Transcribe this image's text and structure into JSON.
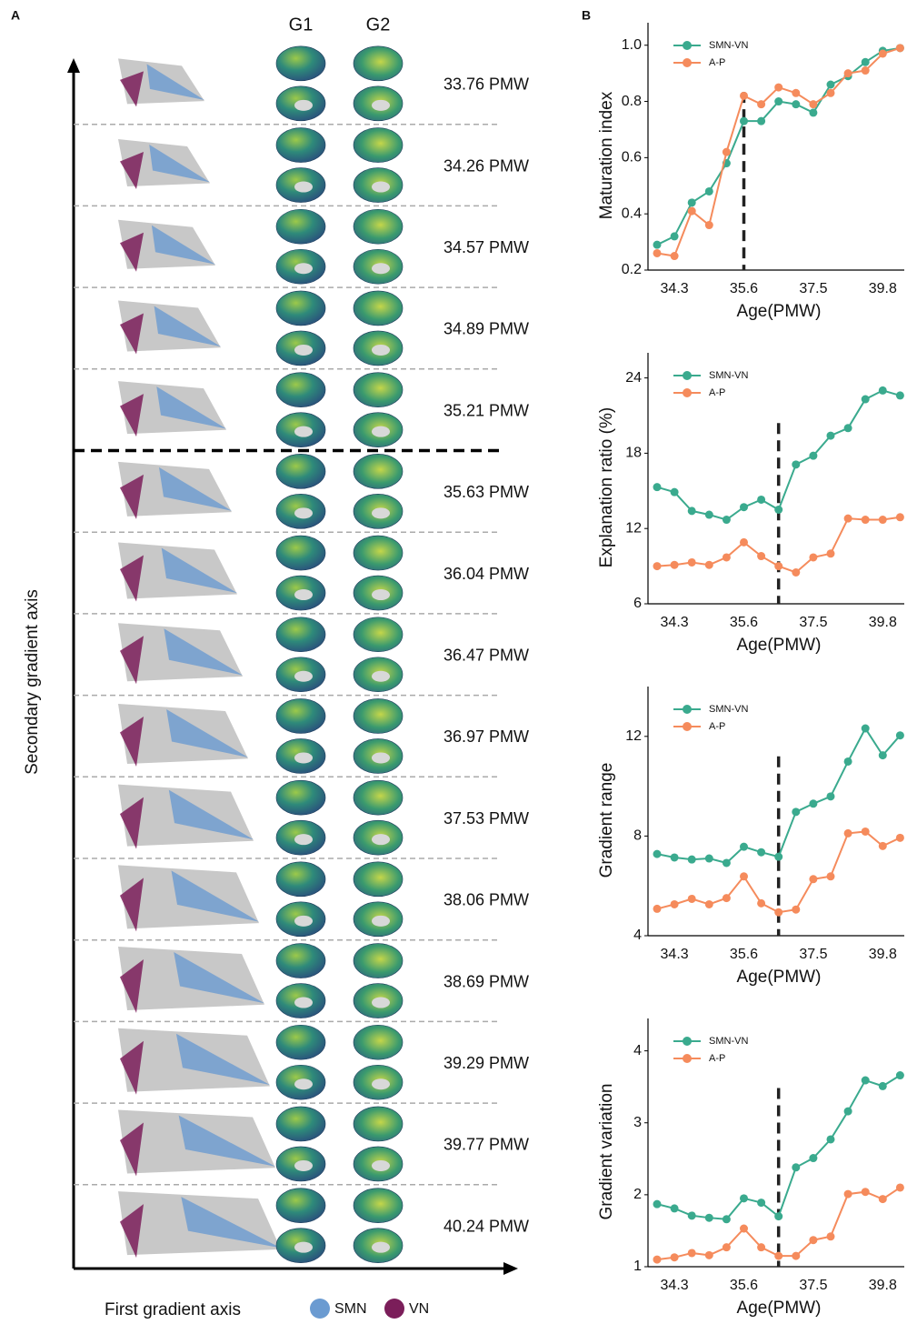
{
  "panel_labels": [
    "A",
    "B"
  ],
  "panel_a": {
    "column_headers": [
      "G1",
      "G2"
    ],
    "rows": [
      "33.76 PMW",
      "34.26 PMW",
      "34.57 PMW",
      "34.89 PMW",
      "35.21 PMW",
      "35.63 PMW",
      "36.04 PMW",
      "36.47 PMW",
      "36.97 PMW",
      "37.53 PMW",
      "38.06 PMW",
      "38.69 PMW",
      "39.29 PMW",
      "39.77 PMW",
      "40.24 PMW"
    ],
    "y_label": "Secondary gradient axis",
    "x_label": "First gradient axis",
    "legend": [
      {
        "name": "SMN",
        "color": "#6b9bd1"
      },
      {
        "name": "VN",
        "color": "#7b1e5a"
      }
    ]
  },
  "chart_data": [
    {
      "type": "line",
      "y_label": "Maturation index",
      "x_label": "Age(PMW)",
      "categories": [
        null,
        "34.3",
        null,
        null,
        null,
        "35.6",
        null,
        null,
        null,
        "37.5",
        null,
        null,
        null,
        "39.8",
        null
      ],
      "series": [
        {
          "name": "SMN-VN",
          "color": "#3aaa8e",
          "values": [
            0.29,
            0.32,
            0.44,
            0.48,
            0.58,
            0.73,
            0.73,
            0.8,
            0.79,
            0.76,
            0.86,
            0.89,
            0.94,
            0.98,
            0.99
          ]
        },
        {
          "name": "A-P",
          "color": "#f58b5c",
          "values": [
            0.26,
            0.25,
            0.41,
            0.36,
            0.62,
            0.82,
            0.79,
            0.85,
            0.83,
            0.79,
            0.83,
            0.9,
            0.91,
            0.97,
            0.99
          ]
        }
      ],
      "ylim": [
        0.2,
        1.08
      ],
      "yticks": [
        {
          "value": 0.2,
          "label": "0.2"
        },
        {
          "value": 0.4,
          "label": "0.4"
        },
        {
          "value": 0.6,
          "label": "0.6"
        },
        {
          "value": 0.8,
          "label": "0.8"
        },
        {
          "value": 1.0,
          "label": "1.0"
        }
      ],
      "vline_category": 5
    },
    {
      "type": "line",
      "y_label": "Explanation ratio (%)",
      "x_label": "Age(PMW)",
      "categories": [
        null,
        "34.3",
        null,
        null,
        null,
        "35.6",
        null,
        null,
        null,
        "37.5",
        null,
        null,
        null,
        "39.8",
        null
      ],
      "series": [
        {
          "name": "SMN-VN",
          "color": "#3aaa8e",
          "values": [
            15.3,
            14.9,
            13.4,
            13.1,
            12.7,
            13.7,
            14.3,
            13.5,
            17.1,
            17.8,
            19.4,
            20.0,
            22.3,
            23.0,
            22.6
          ]
        },
        {
          "name": "A-P",
          "color": "#f58b5c",
          "values": [
            9.0,
            9.1,
            9.3,
            9.1,
            9.7,
            10.9,
            9.8,
            9.0,
            8.5,
            9.7,
            10.0,
            12.8,
            12.7,
            12.7,
            12.9
          ]
        }
      ],
      "ylim": [
        6,
        26
      ],
      "yticks": [
        6,
        12,
        18,
        24
      ],
      "vline_category": 7
    },
    {
      "type": "line",
      "y_label": "Gradient range",
      "x_label": "Age(PMW)",
      "categories": [
        null,
        "34.3",
        null,
        null,
        null,
        "35.6",
        null,
        null,
        null,
        "37.5",
        null,
        null,
        null,
        "39.8",
        null
      ],
      "series": [
        {
          "name": "SMN-VN",
          "color": "#3aaa8e",
          "values": [
            7.28,
            7.14,
            7.06,
            7.1,
            6.92,
            7.57,
            7.35,
            7.17,
            8.97,
            9.3,
            9.59,
            10.99,
            12.32,
            11.24,
            12.04
          ]
        },
        {
          "name": "A-P",
          "color": "#f58b5c",
          "values": [
            5.08,
            5.26,
            5.48,
            5.26,
            5.51,
            6.38,
            5.3,
            4.94,
            5.05,
            6.27,
            6.38,
            8.11,
            8.18,
            7.6,
            7.93
          ]
        }
      ],
      "ylim": [
        4,
        14
      ],
      "yticks": [
        4,
        8,
        12
      ],
      "vline_category": 7
    },
    {
      "type": "line",
      "y_label": "Gradient variation",
      "x_label": "Age(PMW)",
      "categories": [
        null,
        "34.3",
        null,
        null,
        null,
        "35.6",
        null,
        null,
        null,
        "37.5",
        null,
        null,
        null,
        "39.8",
        null
      ],
      "series": [
        {
          "name": "SMN-VN",
          "color": "#3aaa8e",
          "values": [
            1.87,
            1.81,
            1.71,
            1.68,
            1.66,
            1.95,
            1.89,
            1.7,
            2.38,
            2.51,
            2.77,
            3.16,
            3.59,
            3.51,
            3.66
          ]
        },
        {
          "name": "A-P",
          "color": "#f58b5c",
          "values": [
            1.1,
            1.13,
            1.19,
            1.16,
            1.27,
            1.53,
            1.27,
            1.15,
            1.15,
            1.37,
            1.42,
            2.01,
            2.04,
            1.94,
            2.1
          ]
        }
      ],
      "ylim": [
        1,
        4.45
      ],
      "yticks": [
        1,
        2,
        3,
        4
      ],
      "vline_category": 7
    }
  ]
}
